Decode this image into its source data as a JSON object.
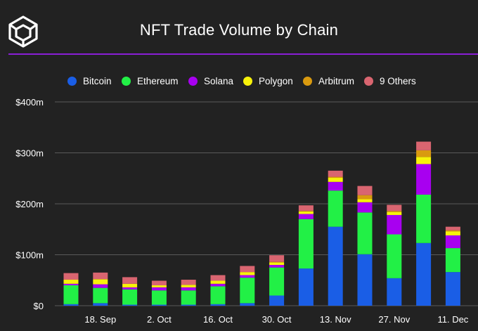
{
  "title": "NFT Trade Volume by Chain",
  "logo_icon": "cube-logo-icon",
  "colors": {
    "background": "#222222",
    "accent_line": "#8a1fd6",
    "grid": "#5a5a5a"
  },
  "chart_data": {
    "type": "bar",
    "stacked": true,
    "title": "NFT Trade Volume by Chain",
    "xlabel": "",
    "ylabel": "",
    "ylim": [
      0,
      400
    ],
    "y_ticks": [
      0,
      100,
      200,
      300,
      400
    ],
    "y_tick_labels": [
      "$0",
      "$100m",
      "$200m",
      "$300m",
      "$400m"
    ],
    "grid": true,
    "legend_position": "top",
    "x_tick_labels": [
      {
        "label": "18. Sep",
        "index": 1
      },
      {
        "label": "2. Oct",
        "index": 3
      },
      {
        "label": "16. Oct",
        "index": 5
      },
      {
        "label": "30. Oct",
        "index": 7
      },
      {
        "label": "13. Nov",
        "index": 9
      },
      {
        "label": "27. Nov",
        "index": 11
      },
      {
        "label": "11. Dec",
        "index": 13
      }
    ],
    "bars_count": 14,
    "series": [
      {
        "name": "Bitcoin",
        "color": "#1a5ee6",
        "values": [
          3,
          5,
          2,
          2,
          2,
          3,
          5,
          20,
          73,
          155,
          101,
          54,
          123,
          66
        ]
      },
      {
        "name": "Ethereum",
        "color": "#22f046",
        "values": [
          37,
          30,
          30,
          28,
          28,
          35,
          50,
          55,
          97,
          71,
          82,
          86,
          95,
          47
        ]
      },
      {
        "name": "Solana",
        "color": "#a800f0",
        "values": [
          3,
          7,
          4,
          6,
          6,
          5,
          5,
          5,
          10,
          17,
          20,
          38,
          60,
          25
        ]
      },
      {
        "name": "Polygon",
        "color": "#f7f20a",
        "values": [
          8,
          10,
          7,
          4,
          5,
          6,
          6,
          5,
          5,
          8,
          6,
          6,
          14,
          8
        ]
      },
      {
        "name": "Arbitrum",
        "color": "#d99a0f",
        "values": [
          0,
          0,
          0,
          0,
          0,
          0,
          0,
          1,
          1,
          2,
          8,
          2,
          13,
          2
        ]
      },
      {
        "name": "9 Others",
        "color": "#d96570",
        "values": [
          13,
          13,
          13,
          9,
          10,
          11,
          12,
          13,
          11,
          12,
          18,
          12,
          17,
          7
        ]
      }
    ]
  }
}
